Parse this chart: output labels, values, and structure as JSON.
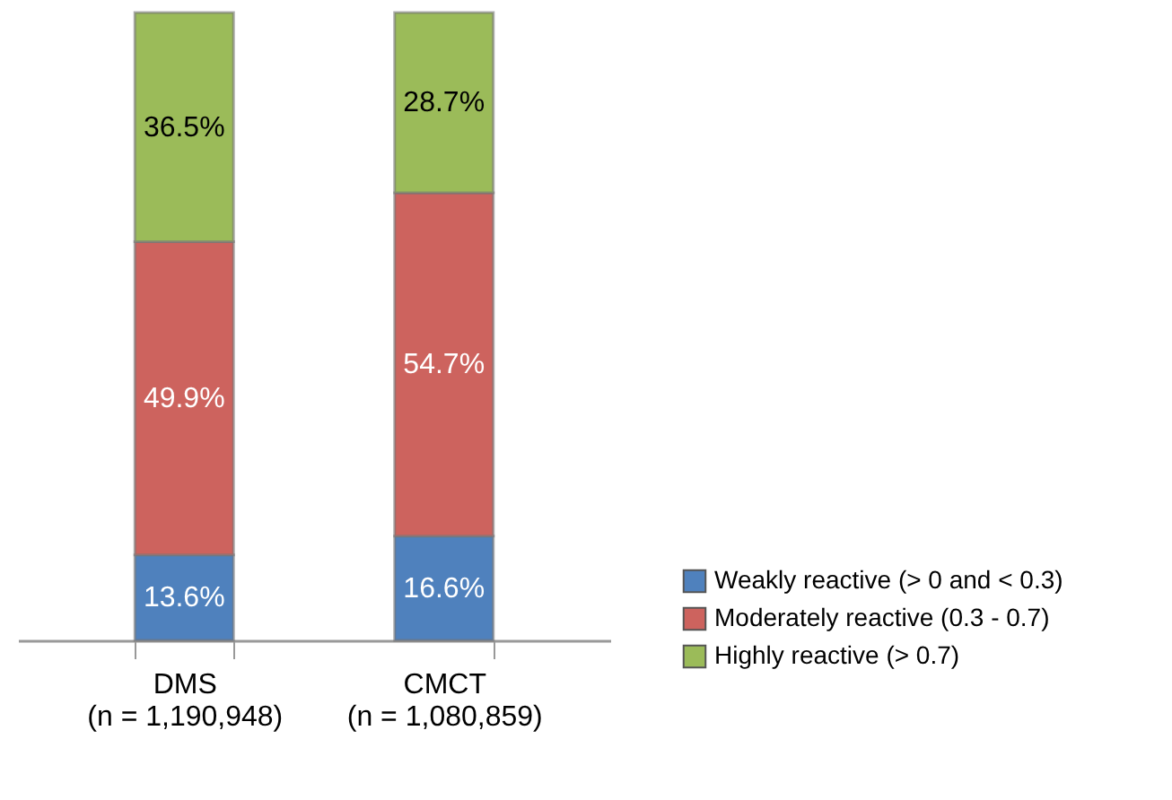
{
  "chart_data": {
    "type": "bar",
    "stacked": true,
    "categories": [
      "DMS\n(n = 1,190,948)",
      "CMCT\n(n = 1,080,859)"
    ],
    "series": [
      {
        "name": "Weakly reactive (> 0 and < 0.3)",
        "color": "#4f81bd",
        "values": [
          13.6,
          16.6
        ],
        "value_labels": [
          "13.6%",
          "16.6%"
        ]
      },
      {
        "name": "Moderately reactive (0.3 - 0.7)",
        "color": "#cd635e",
        "values": [
          49.9,
          54.7
        ],
        "value_labels": [
          "49.9%",
          "54.7%"
        ]
      },
      {
        "name": "Highly reactive (> 0.7)",
        "color": "#9bbb59",
        "values": [
          36.5,
          28.7
        ],
        "value_labels": [
          "36.5%",
          "28.7%"
        ]
      }
    ],
    "legend": "bottom right",
    "tick_labels": "x"
  }
}
